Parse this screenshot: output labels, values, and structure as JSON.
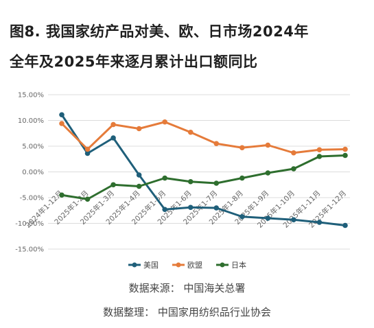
{
  "title": {
    "line1": "图8. 我国家纺产品对美、欧、日市场2024年",
    "line2": "全年及2025年来逐月累计出口额同比"
  },
  "source": {
    "data_source": "数据来源：  中国海关总署",
    "data_compiler": "数据整理：  中国家用纺织品行业协会"
  },
  "chart_data": {
    "type": "line",
    "categories": [
      "2024年1-12月",
      "2025年1-2月",
      "2025年1-3月",
      "2025年1-4月",
      "2025年1-5月",
      "2025年1-6月",
      "2025年1-7月",
      "2025年1-8月",
      "2025年1-9月",
      "2025年1-10月",
      "2025年1-11月",
      "2025年1-12月"
    ],
    "yticks": [
      "15.00%",
      "10.00%",
      "5.00%",
      "0.00%",
      "-5.00%",
      "-10.00%",
      "-15.00%"
    ],
    "ylim": [
      -15,
      15
    ],
    "grid": true,
    "legend_position": "bottom",
    "series": [
      {
        "name": "美国",
        "color": "#1f5f7a",
        "values": [
          11.1,
          3.6,
          6.6,
          -0.6,
          -7.3,
          -6.9,
          -7.0,
          -8.7,
          -9.0,
          -9.3,
          -9.8,
          -10.4
        ]
      },
      {
        "name": "欧盟",
        "color": "#e57b3a",
        "values": [
          9.4,
          4.4,
          9.2,
          8.4,
          9.7,
          7.7,
          5.5,
          4.7,
          5.2,
          3.7,
          4.3,
          4.4
        ]
      },
      {
        "name": "日本",
        "color": "#2e6e2e",
        "values": [
          -4.5,
          -5.3,
          -2.5,
          -2.8,
          -1.2,
          -1.9,
          -2.2,
          -1.2,
          -0.2,
          0.6,
          3.0,
          3.2
        ]
      }
    ]
  }
}
